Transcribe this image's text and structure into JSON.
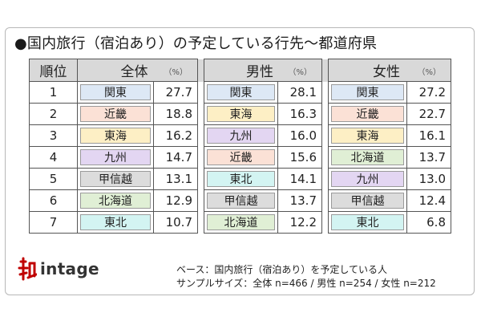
{
  "title": "●国内旅行（宿泊あり）の予定している行先～都道府県",
  "header": {
    "rank": "順位",
    "groups": [
      {
        "label": "全体",
        "unit": "（%）"
      },
      {
        "label": "男性",
        "unit": "（%）"
      },
      {
        "label": "女性",
        "unit": "（%）"
      }
    ]
  },
  "colors": {
    "関東": "#dde8f5",
    "近畿": "#fbe1d6",
    "東海": "#fdefc5",
    "九州": "#e3d6f2",
    "甲信越": "#dcdcdc",
    "北海道": "#e0efd5",
    "東北": "#d3f4f2"
  },
  "rows": [
    {
      "rank": "1",
      "all": {
        "name": "関東",
        "value": "27.7"
      },
      "male": {
        "name": "関東",
        "value": "28.1"
      },
      "female": {
        "name": "関東",
        "value": "27.2"
      }
    },
    {
      "rank": "2",
      "all": {
        "name": "近畿",
        "value": "18.8"
      },
      "male": {
        "name": "東海",
        "value": "16.3"
      },
      "female": {
        "name": "近畿",
        "value": "22.7"
      }
    },
    {
      "rank": "3",
      "all": {
        "name": "東海",
        "value": "16.2"
      },
      "male": {
        "name": "九州",
        "value": "16.0"
      },
      "female": {
        "name": "東海",
        "value": "16.1"
      }
    },
    {
      "rank": "4",
      "all": {
        "name": "九州",
        "value": "14.7"
      },
      "male": {
        "name": "近畿",
        "value": "15.6"
      },
      "female": {
        "name": "北海道",
        "value": "13.7"
      }
    },
    {
      "rank": "5",
      "all": {
        "name": "甲信越",
        "value": "13.1"
      },
      "male": {
        "name": "東北",
        "value": "14.1"
      },
      "female": {
        "name": "九州",
        "value": "13.0"
      }
    },
    {
      "rank": "6",
      "all": {
        "name": "北海道",
        "value": "12.9"
      },
      "male": {
        "name": "甲信越",
        "value": "13.7"
      },
      "female": {
        "name": "甲信越",
        "value": "12.4"
      }
    },
    {
      "rank": "7",
      "all": {
        "name": "東北",
        "value": "10.7"
      },
      "male": {
        "name": "北海道",
        "value": "12.2"
      },
      "female": {
        "name": "東北",
        "value": "6.8"
      }
    }
  ],
  "logo": {
    "text": "intage"
  },
  "notes": {
    "base": "ベース：国内旅行（宿泊あり）を予定している人",
    "sample": "サンプルサイズ：全体 n=466 / 男性 n=254 / 女性 n=212"
  }
}
